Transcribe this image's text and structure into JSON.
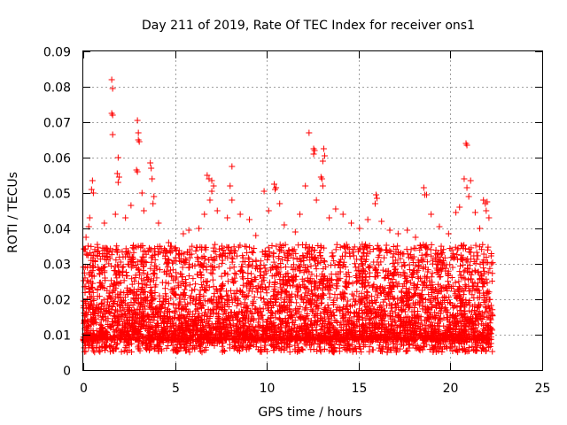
{
  "chart_data": {
    "type": "scatter",
    "title": "Day 211 of 2019, Rate Of TEC Index for receiver ons1",
    "xlabel": "GPS time / hours",
    "ylabel": "ROTI / TECUs",
    "xlim": [
      0,
      25
    ],
    "ylim": [
      0,
      0.09
    ],
    "xticks": [
      "0",
      "5",
      "10",
      "15",
      "20",
      "25"
    ],
    "yticks": [
      "0",
      "0.01",
      "0.02",
      "0.03",
      "0.04",
      "0.05",
      "0.06",
      "0.07",
      "0.08",
      "0.09"
    ],
    "grid": true,
    "marker": "+",
    "color": "#ff0000",
    "series": [
      {
        "points": [
          [
            1.55,
            0.082
          ],
          [
            1.6,
            0.0795
          ],
          [
            1.55,
            0.0725
          ],
          [
            1.6,
            0.072
          ],
          [
            1.6,
            0.0665
          ],
          [
            1.9,
            0.06
          ],
          [
            1.85,
            0.0555
          ],
          [
            1.95,
            0.0545
          ],
          [
            1.9,
            0.053
          ],
          [
            0.5,
            0.0535
          ],
          [
            0.45,
            0.051
          ],
          [
            0.55,
            0.05
          ],
          [
            2.95,
            0.0705
          ],
          [
            3.0,
            0.067
          ],
          [
            3.0,
            0.065
          ],
          [
            3.05,
            0.0645
          ],
          [
            2.9,
            0.0565
          ],
          [
            2.95,
            0.056
          ],
          [
            3.2,
            0.05
          ],
          [
            3.65,
            0.0585
          ],
          [
            3.7,
            0.057
          ],
          [
            3.75,
            0.054
          ],
          [
            3.85,
            0.049
          ],
          [
            3.8,
            0.047
          ],
          [
            6.75,
            0.055
          ],
          [
            6.85,
            0.054
          ],
          [
            7.0,
            0.0535
          ],
          [
            7.1,
            0.052
          ],
          [
            7.0,
            0.0505
          ],
          [
            6.9,
            0.048
          ],
          [
            8.1,
            0.0575
          ],
          [
            8.0,
            0.052
          ],
          [
            8.1,
            0.048
          ],
          [
            10.4,
            0.0525
          ],
          [
            10.5,
            0.0515
          ],
          [
            10.45,
            0.051
          ],
          [
            9.85,
            0.0505
          ],
          [
            10.7,
            0.047
          ],
          [
            12.3,
            0.067
          ],
          [
            12.55,
            0.0625
          ],
          [
            12.6,
            0.062
          ],
          [
            12.55,
            0.061
          ],
          [
            13.1,
            0.0625
          ],
          [
            13.15,
            0.0605
          ],
          [
            13.05,
            0.059
          ],
          [
            12.95,
            0.0545
          ],
          [
            13.0,
            0.054
          ],
          [
            13.05,
            0.052
          ],
          [
            12.1,
            0.052
          ],
          [
            15.95,
            0.0495
          ],
          [
            16.0,
            0.0485
          ],
          [
            15.9,
            0.047
          ],
          [
            18.55,
            0.0515
          ],
          [
            18.6,
            0.0495
          ],
          [
            18.7,
            0.0495
          ],
          [
            20.85,
            0.064
          ],
          [
            20.9,
            0.0635
          ],
          [
            20.75,
            0.054
          ],
          [
            21.1,
            0.0535
          ],
          [
            20.9,
            0.0515
          ],
          [
            21.0,
            0.049
          ],
          [
            21.8,
            0.048
          ],
          [
            21.9,
            0.047
          ],
          [
            22.0,
            0.0475
          ],
          [
            21.95,
            0.045
          ],
          [
            22.1,
            0.043
          ],
          [
            0.15,
            0.0375
          ],
          [
            0.3,
            0.0405
          ],
          [
            0.35,
            0.043
          ],
          [
            1.15,
            0.0415
          ],
          [
            1.75,
            0.044
          ],
          [
            2.3,
            0.043
          ],
          [
            2.6,
            0.0465
          ],
          [
            3.3,
            0.045
          ],
          [
            4.1,
            0.0415
          ],
          [
            4.65,
            0.036
          ],
          [
            5.45,
            0.0385
          ],
          [
            5.75,
            0.0395
          ],
          [
            6.3,
            0.04
          ],
          [
            6.6,
            0.044
          ],
          [
            7.3,
            0.045
          ],
          [
            7.85,
            0.043
          ],
          [
            8.55,
            0.044
          ],
          [
            9.05,
            0.0425
          ],
          [
            9.4,
            0.038
          ],
          [
            10.1,
            0.045
          ],
          [
            10.95,
            0.041
          ],
          [
            11.55,
            0.039
          ],
          [
            11.8,
            0.044
          ],
          [
            12.7,
            0.048
          ],
          [
            13.4,
            0.043
          ],
          [
            13.75,
            0.0455
          ],
          [
            14.15,
            0.044
          ],
          [
            14.6,
            0.0415
          ],
          [
            15.05,
            0.04
          ],
          [
            15.5,
            0.0425
          ],
          [
            16.25,
            0.042
          ],
          [
            16.7,
            0.0395
          ],
          [
            17.15,
            0.0385
          ],
          [
            17.65,
            0.0395
          ],
          [
            18.1,
            0.0375
          ],
          [
            18.95,
            0.044
          ],
          [
            19.4,
            0.0405
          ],
          [
            19.9,
            0.0385
          ],
          [
            20.3,
            0.0445
          ],
          [
            20.5,
            0.046
          ],
          [
            21.35,
            0.0445
          ],
          [
            21.6,
            0.04
          ]
        ]
      }
    ]
  }
}
